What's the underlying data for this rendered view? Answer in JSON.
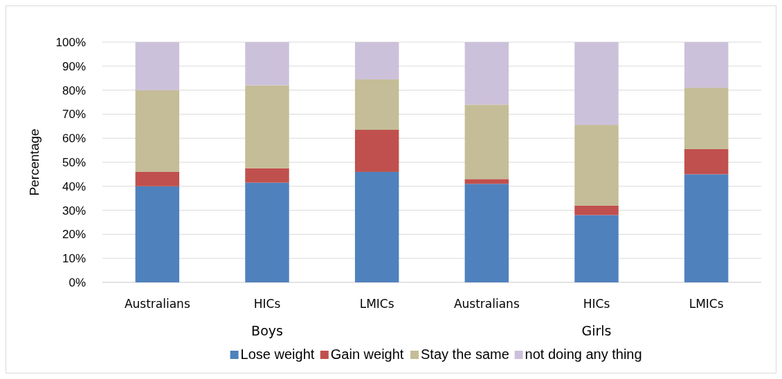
{
  "chart_data": {
    "type": "bar",
    "stacked": true,
    "ylabel": "Percentage",
    "categories": [
      "Australians",
      "HICs",
      "LMICs",
      "Australians",
      "HICs",
      "LMICs"
    ],
    "series": [
      {
        "name": "Lose weight",
        "color": "#4f81bd",
        "values": [
          40,
          41.5,
          46,
          41,
          28,
          45
        ]
      },
      {
        "name": "Gain weight",
        "color": "#c0504d",
        "values": [
          6,
          6,
          17.5,
          2,
          4,
          10.5
        ]
      },
      {
        "name": "Stay the same",
        "color": "#c4bd97",
        "values": [
          34,
          34.5,
          21,
          31,
          33.5,
          25.5
        ]
      },
      {
        "name": "not doing any thing",
        "color": "#ccc1da",
        "values": [
          20,
          18,
          15.5,
          26,
          34.5,
          19
        ]
      }
    ],
    "ylim": [
      0,
      100
    ],
    "yticks": [
      {
        "value": 0,
        "label": "0%"
      },
      {
        "value": 10,
        "label": "10%"
      },
      {
        "value": 20,
        "label": "20%"
      },
      {
        "value": 30,
        "label": "30%"
      },
      {
        "value": 40,
        "label": "40%"
      },
      {
        "value": 50,
        "label": "50%"
      },
      {
        "value": 60,
        "label": "60%"
      },
      {
        "value": 70,
        "label": "70%"
      },
      {
        "value": 80,
        "label": "80%"
      },
      {
        "value": 90,
        "label": "90%"
      },
      {
        "value": 100,
        "label": "100%"
      }
    ],
    "grid": "y",
    "legend": "bottom",
    "annotations": [
      "Boys",
      "Girls"
    ]
  }
}
